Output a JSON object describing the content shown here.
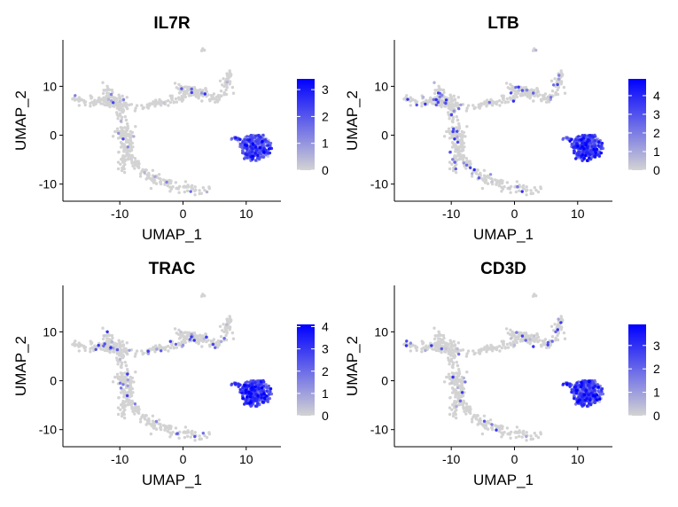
{
  "chart_data": [
    {
      "type": "scatter",
      "title": "IL7R",
      "xlabel": "UMAP_1",
      "ylabel": "UMAP_2",
      "xlim": [
        -19,
        15.5
      ],
      "ylim": [
        -13.5,
        19.5
      ],
      "xticks": [
        -10,
        0,
        10
      ],
      "xtick_labels": [
        "-10",
        "0",
        "10"
      ],
      "yticks": [
        -10,
        0,
        10
      ],
      "ytick_labels": [
        "-10",
        "0",
        "10"
      ],
      "color_scale": {
        "low": "#d3d3d3",
        "high": "#0000ff",
        "min": 0,
        "max": 3.4,
        "ticks": [
          0,
          1,
          2,
          3
        ],
        "tick_labels": [
          "0",
          "1",
          "2",
          "3"
        ]
      },
      "expression": {
        "cluster": 0.55,
        "background": 0.03
      }
    },
    {
      "type": "scatter",
      "title": "LTB",
      "xlabel": "UMAP_1",
      "ylabel": "UMAP_2",
      "xlim": [
        -19,
        15.5
      ],
      "ylim": [
        -13.5,
        19.5
      ],
      "xticks": [
        -10,
        0,
        10
      ],
      "xtick_labels": [
        "-10",
        "0",
        "10"
      ],
      "yticks": [
        -10,
        0,
        10
      ],
      "ytick_labels": [
        "-10",
        "0",
        "10"
      ],
      "color_scale": {
        "low": "#d3d3d3",
        "high": "#0000ff",
        "min": 0,
        "max": 4.9,
        "ticks": [
          0,
          1,
          2,
          3,
          4
        ],
        "tick_labels": [
          "0",
          "1",
          "2",
          "3",
          "4"
        ]
      },
      "expression": {
        "cluster": 0.6,
        "background": 0.12
      }
    },
    {
      "type": "scatter",
      "title": "TRAC",
      "xlabel": "UMAP_1",
      "ylabel": "UMAP_2",
      "xlim": [
        -19,
        15.5
      ],
      "ylim": [
        -13.5,
        19.5
      ],
      "xticks": [
        -10,
        0,
        10
      ],
      "xtick_labels": [
        "-10",
        "0",
        "10"
      ],
      "yticks": [
        -10,
        0,
        10
      ],
      "ytick_labels": [
        "-10",
        "0",
        "10"
      ],
      "color_scale": {
        "low": "#d3d3d3",
        "high": "#0000ff",
        "min": 0,
        "max": 4.1,
        "ticks": [
          0,
          1,
          2,
          3,
          4
        ],
        "tick_labels": [
          "0",
          "1",
          "2",
          "3",
          "4"
        ]
      },
      "expression": {
        "cluster": 0.62,
        "background": 0.08
      }
    },
    {
      "type": "scatter",
      "title": "CD3D",
      "xlabel": "UMAP_1",
      "ylabel": "UMAP_2",
      "xlim": [
        -19,
        15.5
      ],
      "ylim": [
        -13.5,
        19.5
      ],
      "xticks": [
        -10,
        0,
        10
      ],
      "xtick_labels": [
        "-10",
        "0",
        "10"
      ],
      "yticks": [
        -10,
        0,
        10
      ],
      "ytick_labels": [
        "-10",
        "0",
        "10"
      ],
      "color_scale": {
        "low": "#d3d3d3",
        "high": "#0000ff",
        "min": 0,
        "max": 3.9,
        "ticks": [
          0,
          1,
          2,
          3
        ],
        "tick_labels": [
          "0",
          "1",
          "2",
          "3"
        ]
      },
      "expression": {
        "cluster": 0.62,
        "background": 0.07
      }
    }
  ]
}
